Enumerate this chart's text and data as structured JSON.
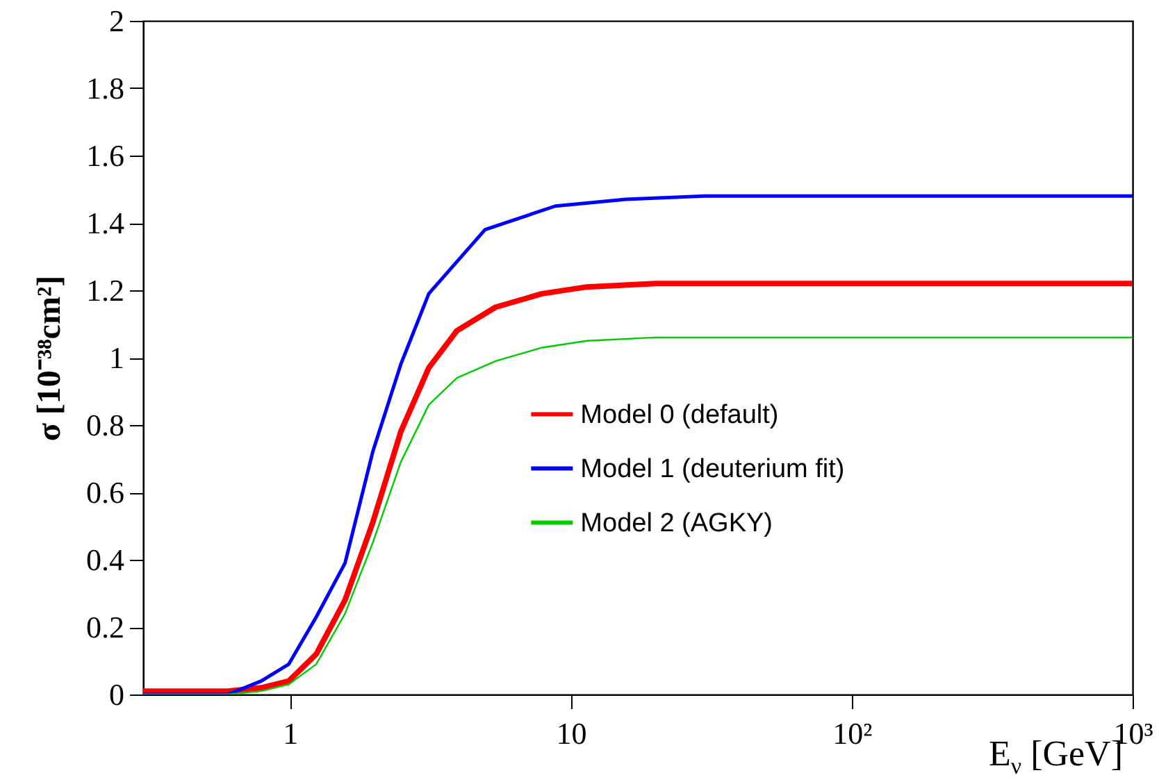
{
  "chart_data": {
    "type": "line",
    "xlabel": "E$_{ν}$ [GeV]",
    "ylabel": "σ [10⁻³⁸cm²]",
    "log": "x",
    "xlim": [
      0.3,
      1000
    ],
    "xticks": [
      1,
      10,
      {
        "value": 100,
        "label": "10²"
      },
      {
        "value": 1000,
        "label": "10³"
      }
    ],
    "ylim": [
      0,
      2
    ],
    "yticks": [
      0,
      0.2,
      0.4,
      0.6,
      0.8,
      1,
      1.2,
      1.4,
      1.6,
      1.8,
      2
    ],
    "grid": false,
    "legend": "right",
    "marker": "none",
    "line_style": "solid",
    "series": [
      {
        "name": "Model 0 (default)",
        "color": "#ff0000",
        "x": [
          0.3,
          0.6,
          0.79,
          0.99,
          1.24,
          1.57,
          1.97,
          2.48,
          3.12,
          3.93,
          5.4,
          7.9,
          11.4,
          20,
          100,
          1000
        ],
        "values": [
          0.01,
          0.01,
          0.02,
          0.04,
          0.12,
          0.28,
          0.51,
          0.78,
          0.97,
          1.08,
          1.15,
          1.19,
          1.21,
          1.22,
          1.22,
          1.22
        ]
      },
      {
        "name": "Model 1 (deuterium fit)",
        "color": "#0000ff",
        "x": [
          0.3,
          0.6,
          0.79,
          0.99,
          1.24,
          1.57,
          1.97,
          2.48,
          3.12,
          4.95,
          8.8,
          15.7,
          30,
          100,
          1000
        ],
        "values": [
          0,
          0,
          0.04,
          0.09,
          0.23,
          0.39,
          0.72,
          0.98,
          1.19,
          1.38,
          1.45,
          1.47,
          1.48,
          1.48,
          1.48
        ]
      },
      {
        "name": "Model 2 (AGKY)",
        "color": "#00cc00",
        "x": [
          0.3,
          0.6,
          0.79,
          0.99,
          1.24,
          1.57,
          1.97,
          2.48,
          3.12,
          3.93,
          5.4,
          7.9,
          11.4,
          20,
          100,
          1000
        ],
        "values": [
          0,
          0,
          0.01,
          0.03,
          0.09,
          0.24,
          0.45,
          0.69,
          0.86,
          0.94,
          0.99,
          1.03,
          1.05,
          1.06,
          1.06,
          1.06
        ]
      }
    ]
  }
}
